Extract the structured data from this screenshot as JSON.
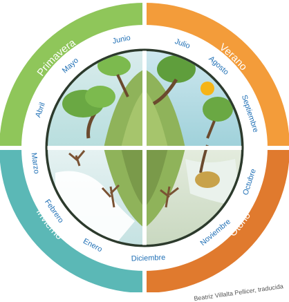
{
  "seasons": {
    "spring": {
      "label": "Primavera",
      "color": "#8fc65a"
    },
    "summer": {
      "label": "Verano",
      "color": "#f39c3a"
    },
    "autumn": {
      "label": "Otoño",
      "color": "#e07a2e"
    },
    "winter": {
      "label": "Invierno",
      "color": "#5bb8b6"
    }
  },
  "months": [
    "Enero",
    "Febrero",
    "Marzo",
    "Abril",
    "Mayo",
    "Junio",
    "Julio",
    "Agosto",
    "Septiembre",
    "Octubre",
    "Noviembre",
    "Diciembre"
  ],
  "month_color": "#1f6fb5",
  "credit": "Beatriz Villalta Pellicer, traducida"
}
